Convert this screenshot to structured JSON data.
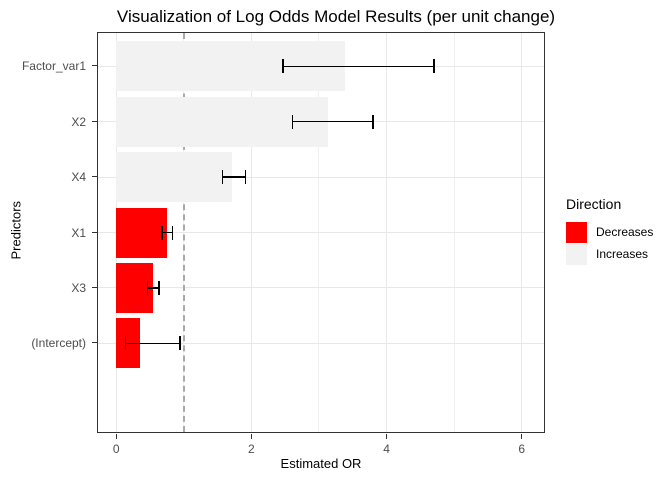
{
  "chart_data": {
    "type": "bar",
    "orientation": "horizontal",
    "title": "Visualization of Log Odds Model Results (per unit change)",
    "xlabel": "Estimated OR",
    "ylabel": "Predictors",
    "categories": [
      "Factor_var1",
      "X2",
      "X4",
      "X1",
      "X3",
      "(Intercept)"
    ],
    "points": [
      {
        "predictor": "Factor_var1",
        "or": 3.39,
        "ci_low": 2.47,
        "ci_high": 4.7,
        "direction": "Increases"
      },
      {
        "predictor": "X2",
        "or": 3.13,
        "ci_low": 2.61,
        "ci_high": 3.8,
        "direction": "Increases"
      },
      {
        "predictor": "X4",
        "or": 1.72,
        "ci_low": 1.57,
        "ci_high": 1.91,
        "direction": "Increases"
      },
      {
        "predictor": "X1",
        "or": 0.75,
        "ci_low": 0.68,
        "ci_high": 0.83,
        "direction": "Decreases"
      },
      {
        "predictor": "X3",
        "or": 0.54,
        "ci_low": 0.46,
        "ci_high": 0.63,
        "direction": "Decreases"
      },
      {
        "predictor": "(Intercept)",
        "or": 0.35,
        "ci_low": 0.14,
        "ci_high": 0.94,
        "direction": "Decreases"
      }
    ],
    "x_ticks": [
      0,
      2,
      4,
      6
    ],
    "x_tick_labels": [
      "0",
      "2",
      "4",
      "6"
    ],
    "x_minor_ticks": [
      1,
      3,
      5
    ],
    "xlim": [
      -0.27,
      6.33
    ],
    "bar_baseline": 0,
    "reference_line": {
      "x": 1,
      "linetype": "dashed",
      "color": "#a9a9a9"
    },
    "legend": {
      "title": "Direction",
      "position": "right",
      "items": [
        {
          "label": "Decreases",
          "color": "#ff0000"
        },
        {
          "label": "Increases",
          "color": "#f2f2f2"
        }
      ]
    },
    "colors": {
      "Decreases": "#ff0000",
      "Increases": "#f2f2f2"
    },
    "grid": true
  }
}
